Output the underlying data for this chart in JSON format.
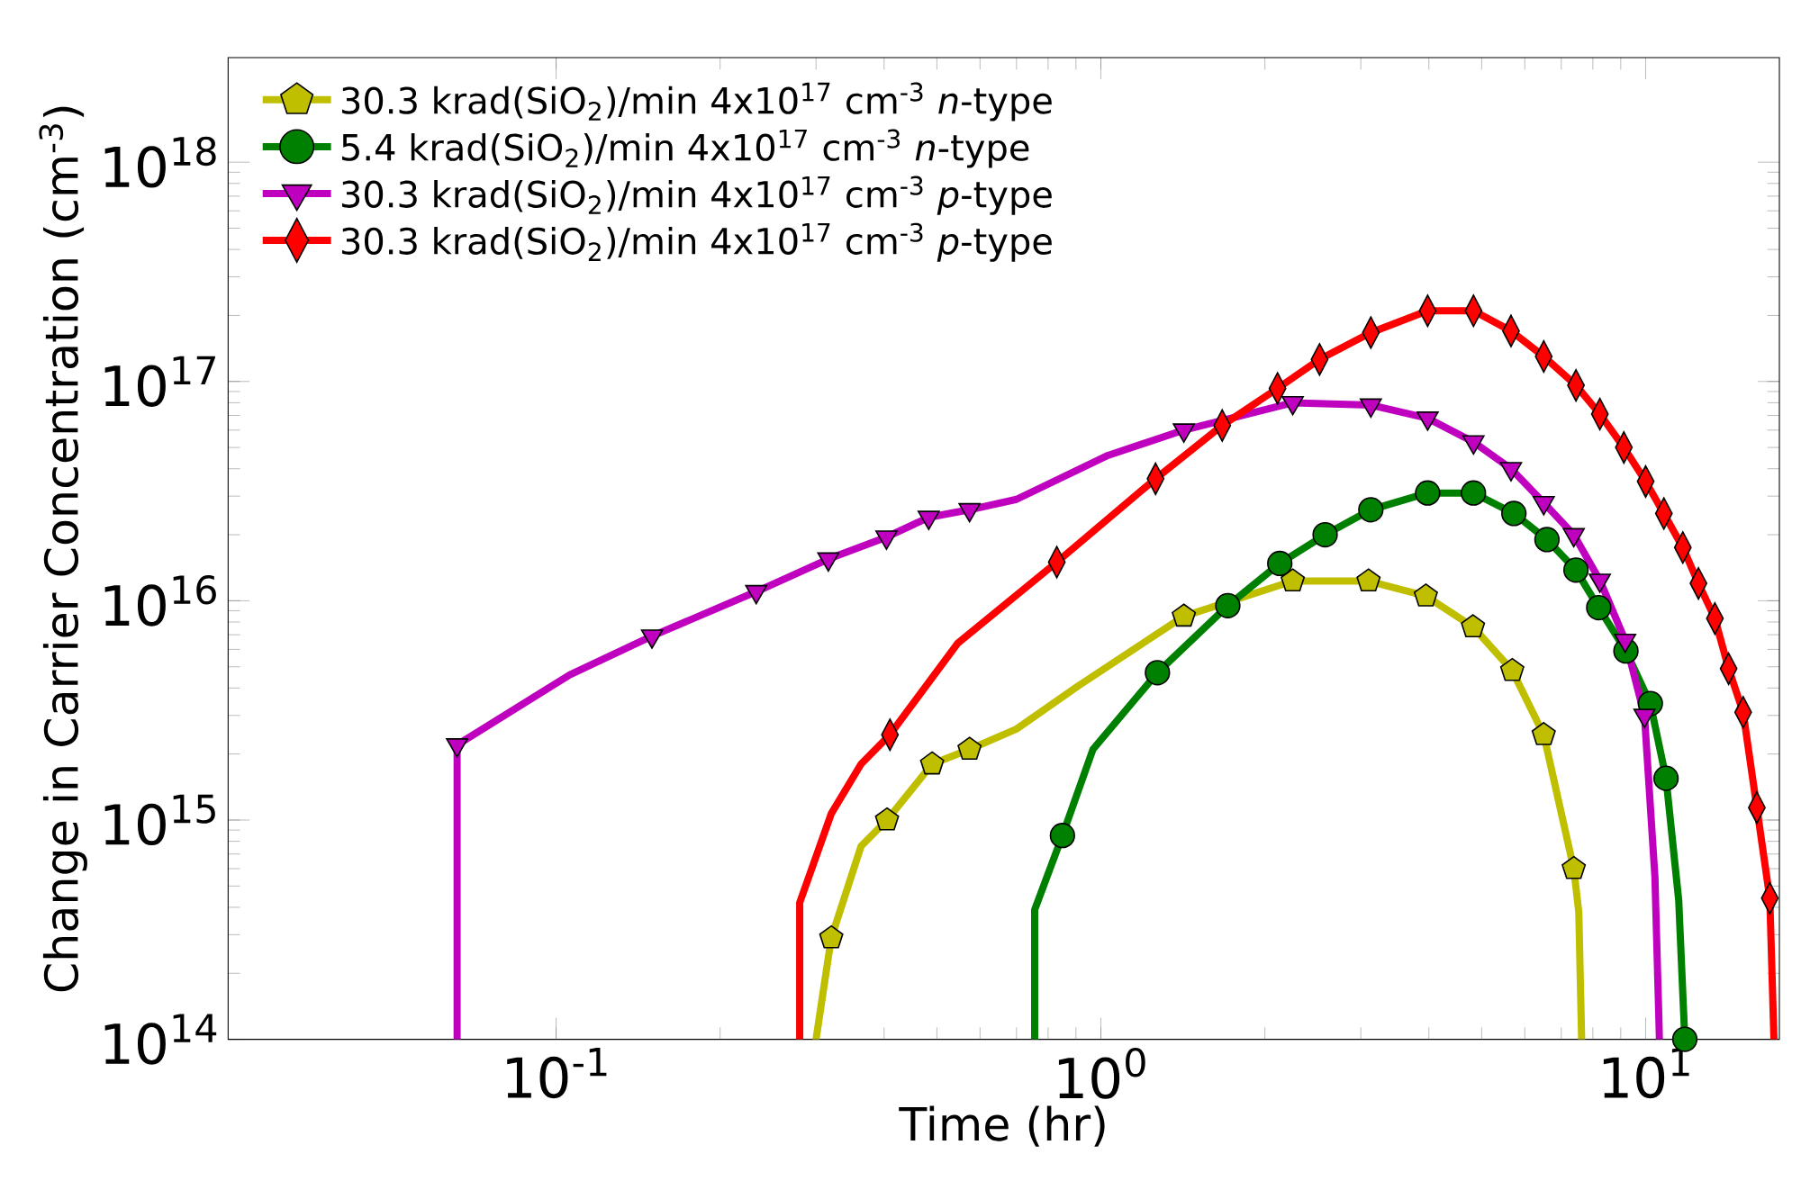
{
  "chart_data": {
    "type": "line",
    "xlabel": "Time (hr)",
    "ylabel": "Change in Carrier Concentration (cm$^{-3}$)",
    "log": "xy",
    "legend": "top left",
    "grid": false,
    "xlim": [
      0.025,
      17.6
    ],
    "ylim": [
      100000000000000.0,
      3e+18
    ],
    "xticks": [
      {
        "value": 0.1,
        "label": "10$^{-1}$"
      },
      {
        "value": 1,
        "label": "10$^{0}$"
      },
      {
        "value": 10,
        "label": "10$^{1}$"
      }
    ],
    "yticks": [
      {
        "value": 100000000000000.0,
        "label": "10$^{14}$"
      },
      {
        "value": 1000000000000000.0,
        "label": "10$^{15}$"
      },
      {
        "value": 1e+16,
        "label": "10$^{16}$"
      },
      {
        "value": 1e+17,
        "label": "10$^{17}$"
      },
      {
        "value": 1e+18,
        "label": "10$^{18}$"
      }
    ],
    "series": [
      {
        "name": "30.3 krad(SiO$_{2}$)/min 4x10$^{17}$ cm$^{-3}$ *n*-type",
        "marker": "none",
        "color": "#bfbf00",
        "x": [
          0.3,
          0.32,
          0.363,
          0.405,
          0.49,
          0.574,
          0.7,
          0.91,
          1.42,
          2.25,
          3.1,
          3.95,
          4.82,
          5.69,
          6.5,
          7.38,
          7.54,
          7.63
        ],
        "values": [
          100000000000000.0,
          290000000000000.0,
          760000000000000.0,
          1000000000000000.0,
          1800000000000000.0,
          2100000000000000.0,
          2600000000000000.0,
          4100000000000000.0,
          8500000000000000.0,
          1.23e+16,
          1.23e+16,
          1.05e+16,
          7600000000000000.0,
          4800000000000000.0,
          2450000000000000.0,
          600000000000000.0,
          380000000000000.0,
          100000000000000.0
        ]
      },
      {
        "type": "scatter",
        "color": "#bfbf00",
        "x": [
          0.32,
          0.405,
          0.49,
          0.574,
          1.42,
          2.25,
          3.1,
          3.95,
          4.82,
          5.69,
          6.5,
          7.38
        ],
        "values": [
          290000000000000.0,
          1000000000000000.0,
          1800000000000000.0,
          2100000000000000.0,
          8500000000000000.0,
          1.23e+16,
          1.23e+16,
          1.05e+16,
          7600000000000000.0,
          4800000000000000.0,
          2450000000000000.0,
          600000000000000.0
        ]
      },
      {
        "name": "5.4 krad(SiO$_{2}$)/min 4x10$^{17}$ cm$^{-3}$ *n*-type",
        "marker": "none",
        "color": "#008000",
        "x": [
          0.756,
          0.756,
          0.85,
          0.967,
          1.27,
          1.71,
          2.13,
          2.58,
          3.13,
          3.98,
          4.83,
          5.73,
          6.59,
          7.45,
          8.2,
          9.2,
          10.2,
          10.9,
          11.5,
          11.8
        ],
        "values": [
          100000000000000.0,
          390000000000000.0,
          850000000000000.0,
          2100000000000000.0,
          4700000000000000.0,
          9500000000000000.0,
          1.48e+16,
          2e+16,
          2.6e+16,
          3.1e+16,
          3.1e+16,
          2.5e+16,
          1.9e+16,
          1.38e+16,
          9300000000000000.0,
          5900000000000000.0,
          3400000000000000.0,
          1550000000000000.0,
          430000000000000.0,
          100000000000000.0
        ]
      },
      {
        "type": "scatter",
        "marker": "circle",
        "color": "#008000",
        "x": [
          0.85,
          1.27,
          1.71,
          2.13,
          2.58,
          3.13,
          3.98,
          4.83,
          5.73,
          6.59,
          7.45,
          8.2,
          9.2,
          10.2,
          10.9,
          11.8
        ],
        "values": [
          850000000000000.0,
          4700000000000000.0,
          9500000000000000.0,
          1.48e+16,
          2e+16,
          2.6e+16,
          3.1e+16,
          3.1e+16,
          2.5e+16,
          1.9e+16,
          1.38e+16,
          9300000000000000.0,
          5900000000000000.0,
          3400000000000000.0,
          1550000000000000.0,
          100000000000000.0
        ]
      },
      {
        "name": "30.3 krad(SiO$_{2}$)/min 4x10$^{17}$ cm$^{-3}$ *p*-type",
        "marker": "none",
        "color": "#bf00bf",
        "x": [
          0.0658,
          0.0658,
          0.106,
          0.15,
          0.233,
          0.316,
          0.404,
          0.483,
          0.574,
          0.7,
          1.03,
          1.42,
          2.25,
          3.13,
          3.98,
          4.83,
          5.66,
          6.5,
          7.38,
          8.24,
          9.17,
          9.95,
          10.4,
          10.6
        ],
        "values": [
          100000000000000.0,
          2200000000000000.0,
          4600000000000000.0,
          6900000000000000.0,
          1.1e+16,
          1.55e+16,
          1.95e+16,
          2.4e+16,
          2.6e+16,
          2.9e+16,
          4.6e+16,
          6e+16,
          8e+16,
          7.8e+16,
          6.8e+16,
          5.3e+16,
          4e+16,
          2.8e+16,
          2e+16,
          1.24e+16,
          6600000000000000.0,
          3000000000000000.0,
          550000000000000.0,
          100000000000000.0
        ]
      },
      {
        "type": "scatter",
        "marker": "triangle",
        "color": "#bf00bf",
        "x": [
          0.0658,
          0.15,
          0.233,
          0.316,
          0.404,
          0.483,
          0.574,
          1.42,
          2.25,
          3.13,
          3.98,
          4.83,
          5.66,
          6.5,
          7.38,
          8.24,
          9.17,
          9.95
        ],
        "values": [
          2200000000000000.0,
          6900000000000000.0,
          1.1e+16,
          1.55e+16,
          1.95e+16,
          2.4e+16,
          2.6e+16,
          6e+16,
          8e+16,
          7.8e+16,
          6.8e+16,
          5.3e+16,
          4e+16,
          2.8e+16,
          2e+16,
          1.24e+16,
          6600000000000000.0,
          3000000000000000.0
        ]
      },
      {
        "name": "30.3 krad(SiO$_{2}$)/min 4x10$^{17}$ cm$^{-3}$ *p*-type",
        "marker": "none",
        "color": "#ff0000",
        "x": [
          0.28,
          0.28,
          0.32,
          0.363,
          0.41,
          0.546,
          0.83,
          1.26,
          1.67,
          2.11,
          2.52,
          3.13,
          3.98,
          4.83,
          5.66,
          6.5,
          7.45,
          8.24,
          9.12,
          10.0,
          10.8,
          11.7,
          12.5,
          13.4,
          14.2,
          15.1,
          16.0,
          16.9,
          17.2
        ],
        "values": [
          100000000000000.0,
          420000000000000.0,
          1070000000000000.0,
          1800000000000000.0,
          2450000000000000.0,
          6400000000000000.0,
          1.5e+16,
          3.6e+16,
          6.3e+16,
          9.3e+16,
          1.26e+17,
          1.67e+17,
          2.1e+17,
          2.1e+17,
          1.7e+17,
          1.3e+17,
          9.6e+16,
          7.1e+16,
          5e+16,
          3.5e+16,
          2.5e+16,
          1.75e+16,
          1.2e+16,
          8300000000000000.0,
          4900000000000000.0,
          3100000000000000.0,
          1140000000000000.0,
          440000000000000.0,
          100000000000000.0
        ]
      },
      {
        "type": "scatter",
        "marker": "diamond",
        "color": "#ff0000",
        "x": [
          0.41,
          0.83,
          1.26,
          1.67,
          2.11,
          2.52,
          3.13,
          3.98,
          4.83,
          5.66,
          6.5,
          7.45,
          8.24,
          9.12,
          10.0,
          10.8,
          11.7,
          12.5,
          13.4,
          14.2,
          15.1,
          16.0,
          16.9
        ],
        "values": [
          2450000000000000.0,
          1.5e+16,
          3.6e+16,
          6.3e+16,
          9.3e+16,
          1.26e+17,
          1.67e+17,
          2.1e+17,
          2.1e+17,
          1.7e+17,
          1.3e+17,
          9.6e+16,
          7.1e+16,
          5e+16,
          3.5e+16,
          2.5e+16,
          1.75e+16,
          1.2e+16,
          8300000000000000.0,
          4900000000000000.0,
          3100000000000000.0,
          1140000000000000.0,
          440000000000000.0
        ]
      }
    ]
  }
}
